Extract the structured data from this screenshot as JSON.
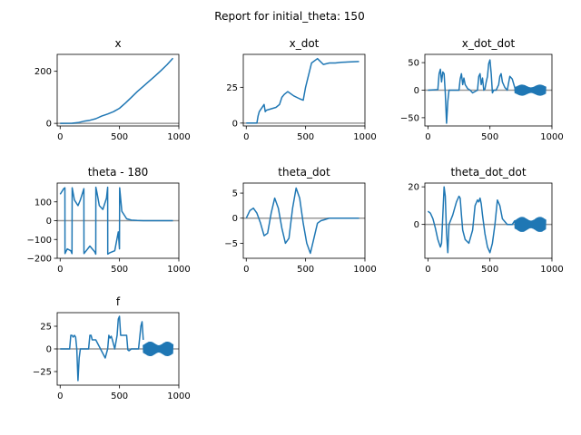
{
  "suptitle": "Report for initial_theta: 150",
  "colors": {
    "series": "#1f77b4",
    "baseline": "#999999",
    "axes": "#000000"
  },
  "chart_data": [
    {
      "type": "line",
      "title": "x",
      "xlim": [
        -25,
        1000
      ],
      "ylim": [
        -10,
        265
      ],
      "xticks": [
        0,
        500,
        1000
      ],
      "yticks": [
        0,
        200
      ],
      "baseline": 0,
      "x": [
        0,
        100,
        150,
        200,
        250,
        300,
        350,
        400,
        450,
        500,
        550,
        600,
        650,
        700,
        750,
        800,
        850,
        900,
        950
      ],
      "y": [
        0,
        0.5,
        3,
        8,
        12,
        18,
        28,
        36,
        45,
        58,
        78,
        100,
        122,
        142,
        162,
        182,
        203,
        225,
        250
      ]
    },
    {
      "type": "line",
      "title": "x_dot",
      "xlim": [
        -25,
        1000
      ],
      "ylim": [
        -2,
        48
      ],
      "xticks": [
        0,
        500,
        1000
      ],
      "yticks": [
        0,
        25
      ],
      "baseline": 0,
      "x": [
        0,
        90,
        100,
        110,
        150,
        160,
        170,
        250,
        280,
        300,
        320,
        350,
        400,
        450,
        480,
        500,
        550,
        600,
        650,
        700,
        750,
        800,
        950
      ],
      "y": [
        0,
        0,
        5,
        8,
        13,
        8,
        9,
        11,
        13,
        18,
        20,
        22,
        19,
        17,
        16,
        25,
        42,
        45,
        41,
        42,
        42,
        42.5,
        43
      ]
    },
    {
      "type": "line",
      "title": "x_dot_dot",
      "xlim": [
        -25,
        1000
      ],
      "ylim": [
        -65,
        65
      ],
      "xticks": [
        0,
        500,
        1000
      ],
      "yticks": [
        -50,
        0,
        50
      ],
      "baseline": 0,
      "oscillation": {
        "start": 700,
        "end": 950,
        "amplitude": 10
      },
      "x": [
        0,
        80,
        90,
        100,
        110,
        120,
        130,
        140,
        150,
        160,
        170,
        180,
        250,
        260,
        270,
        280,
        290,
        300,
        320,
        340,
        360,
        400,
        410,
        420,
        430,
        440,
        450,
        460,
        470,
        480,
        490,
        500,
        510,
        520,
        530,
        550,
        560,
        570,
        580,
        590,
        600,
        620,
        640,
        660,
        680,
        700
      ],
      "y": [
        0,
        1,
        30,
        38,
        15,
        33,
        30,
        -5,
        -60,
        -20,
        0,
        0,
        0,
        20,
        30,
        10,
        22,
        10,
        3,
        0,
        -5,
        0,
        25,
        30,
        10,
        22,
        0,
        2,
        15,
        25,
        48,
        55,
        30,
        -5,
        0,
        0,
        5,
        10,
        25,
        30,
        15,
        5,
        0,
        25,
        20,
        5
      ]
    },
    {
      "type": "line",
      "title": "theta - 180",
      "xlim": [
        -25,
        1000
      ],
      "ylim": [
        -200,
        200
      ],
      "xticks": [
        0,
        500,
        1000
      ],
      "yticks": [
        -200,
        -100,
        0,
        100
      ],
      "baseline": 0,
      "x": [
        0,
        30,
        40,
        41,
        60,
        90,
        100,
        101,
        120,
        150,
        170,
        200,
        201,
        220,
        250,
        270,
        290,
        300,
        301,
        310,
        330,
        360,
        390,
        400,
        401,
        420,
        460,
        490,
        500,
        501,
        520,
        560,
        600,
        650,
        700,
        950
      ],
      "y": [
        140,
        170,
        175,
        -175,
        -150,
        -160,
        -175,
        175,
        110,
        80,
        110,
        170,
        -175,
        -160,
        -135,
        -150,
        -165,
        -178,
        178,
        150,
        80,
        60,
        120,
        178,
        -178,
        -170,
        -160,
        -60,
        -150,
        175,
        50,
        10,
        3,
        1,
        0,
        0
      ]
    },
    {
      "type": "line",
      "title": "theta_dot",
      "xlim": [
        -25,
        1000
      ],
      "ylim": [
        -8,
        7
      ],
      "xticks": [
        0,
        500,
        1000
      ],
      "yticks": [
        -5,
        0,
        5
      ],
      "baseline": 0,
      "x": [
        0,
        30,
        60,
        90,
        120,
        150,
        180,
        210,
        240,
        270,
        300,
        330,
        360,
        390,
        420,
        450,
        480,
        510,
        540,
        570,
        600,
        630,
        660,
        700,
        750,
        800,
        950
      ],
      "y": [
        0,
        1.5,
        2,
        1,
        -1,
        -3.5,
        -3,
        1,
        4,
        2,
        -2,
        -5,
        -4,
        2,
        6,
        4,
        -1,
        -5,
        -7,
        -4,
        -1,
        -0.5,
        -0.3,
        0,
        0,
        0,
        0
      ]
    },
    {
      "type": "line",
      "title": "theta_dot_dot",
      "xlim": [
        -25,
        1000
      ],
      "ylim": [
        -18,
        22
      ],
      "xticks": [
        0,
        500,
        1000
      ],
      "yticks": [
        0,
        20
      ],
      "baseline": 0,
      "oscillation": {
        "start": 700,
        "end": 950,
        "amplitude": 4
      },
      "x": [
        0,
        20,
        40,
        60,
        80,
        100,
        110,
        120,
        130,
        140,
        150,
        160,
        170,
        200,
        230,
        250,
        260,
        270,
        280,
        300,
        330,
        360,
        380,
        400,
        410,
        420,
        430,
        440,
        460,
        480,
        500,
        520,
        540,
        560,
        580,
        600,
        640,
        680,
        700
      ],
      "y": [
        7,
        6,
        3,
        -2,
        -8,
        -12,
        -10,
        5,
        20,
        15,
        -5,
        -15,
        0,
        5,
        12,
        15,
        14,
        5,
        -3,
        -8,
        -10,
        -3,
        10,
        13,
        12,
        14,
        11,
        5,
        -5,
        -12,
        -15,
        -10,
        0,
        13,
        10,
        3,
        0,
        0,
        2
      ]
    },
    {
      "type": "line",
      "title": "f",
      "xlim": [
        -25,
        1000
      ],
      "ylim": [
        -40,
        40
      ],
      "xticks": [
        0,
        500,
        1000
      ],
      "yticks": [
        -25,
        0,
        25
      ],
      "baseline": 0,
      "oscillation": {
        "start": 700,
        "end": 950,
        "amplitude": 8
      },
      "x": [
        0,
        80,
        90,
        100,
        110,
        120,
        130,
        140,
        150,
        160,
        170,
        180,
        240,
        250,
        260,
        270,
        280,
        300,
        320,
        340,
        360,
        380,
        400,
        410,
        420,
        430,
        440,
        460,
        480,
        490,
        500,
        510,
        520,
        540,
        560,
        570,
        580,
        600,
        620,
        640,
        660,
        680,
        690,
        700
      ],
      "y": [
        0,
        0,
        15,
        15,
        13,
        15,
        13,
        0,
        -35,
        -10,
        0,
        0,
        0,
        15,
        15,
        10,
        10,
        10,
        5,
        0,
        -5,
        -10,
        0,
        15,
        12,
        14,
        10,
        0,
        15,
        33,
        36,
        15,
        15,
        15,
        15,
        -1,
        -2,
        0,
        0,
        0,
        0,
        25,
        30,
        10
      ]
    }
  ]
}
